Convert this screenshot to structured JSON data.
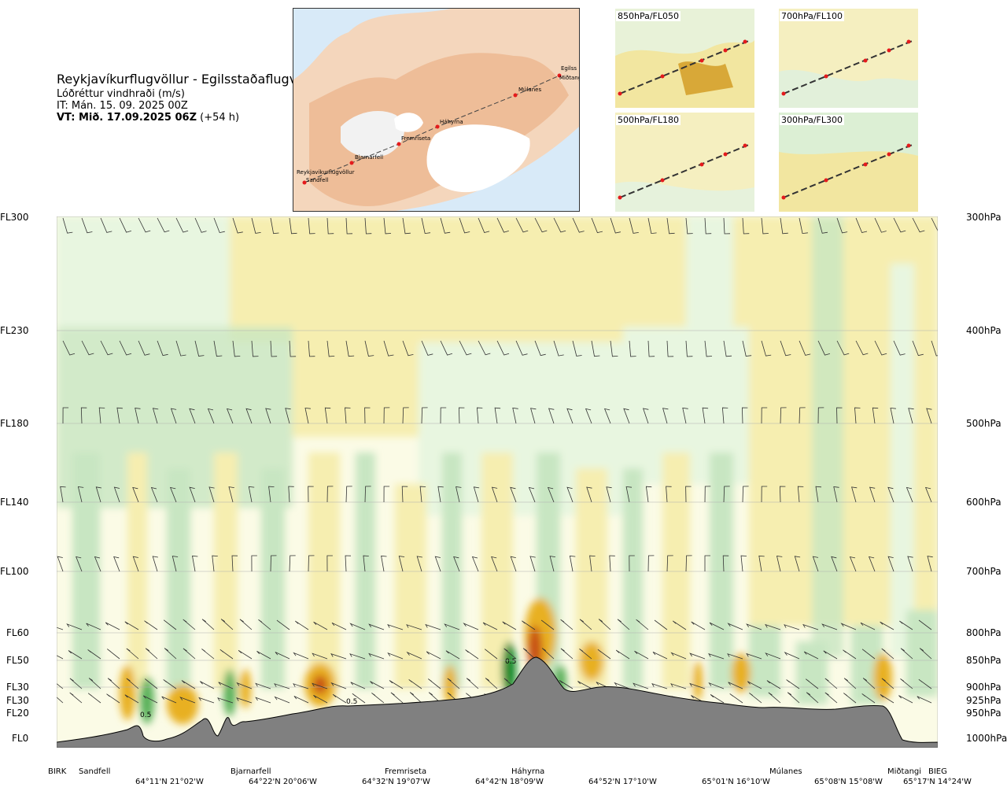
{
  "header": {
    "route_title": "Reykjavíkurflugvöllur - Egilsstaðaflugvöllur",
    "variable": "Lóðréttur vindhraði (m/s)",
    "issue_time": "IT: Mán. 15. 09. 2025 00Z",
    "valid_time": "VT: Mið. 17.09.2025 06Z",
    "lead_time": "(+54 h)"
  },
  "overview_map": {
    "waypoints": [
      "Reykjavíkurflugvöllur",
      "Sandfell",
      "Bjarnarfell",
      "Fremriseta",
      "Háhyrna",
      "Múlanes",
      "Miðtangi",
      "Egilss"
    ]
  },
  "mini_maps": [
    {
      "label": "850hPa/FL050"
    },
    {
      "label": "700hPa/FL100"
    },
    {
      "label": "500hPa/FL180"
    },
    {
      "label": "300hPa/FL300"
    }
  ],
  "levels": [
    {
      "fl": "FL300",
      "hpa": "300hPa"
    },
    {
      "fl": "FL230",
      "hpa": "400hPa"
    },
    {
      "fl": "FL180",
      "hpa": "500hPa"
    },
    {
      "fl": "FL140",
      "hpa": "600hPa"
    },
    {
      "fl": "FL100",
      "hpa": "700hPa"
    },
    {
      "fl": "FL60",
      "hpa": "800hPa"
    },
    {
      "fl": "FL50",
      "hpa": "850hPa"
    },
    {
      "fl": "FL30",
      "hpa": "900hPa"
    },
    {
      "fl": "FL30",
      "hpa": "925hPa"
    },
    {
      "fl": "FL20",
      "hpa": "950hPa"
    },
    {
      "fl": "FL0",
      "hpa": "1000hPa"
    }
  ],
  "station_labels": [
    "BIRK",
    "Sandfell",
    "Bjarnarfell",
    "Fremriseta",
    "Háhyrna",
    "Múlanes",
    "Miðtangi",
    "BIEG"
  ],
  "coord_labels": [
    "64°11'N 21°02'W",
    "64°22'N 20°06'W",
    "64°32'N 19°07'W",
    "64°42'N 18°09'W",
    "64°52'N 17°10'W",
    "65°01'N 16°10'W",
    "65°08'N 15°08'W",
    "65°17'N 14°24'W"
  ],
  "contour_labels": [
    "0.5",
    "0.5",
    "0.5"
  ],
  "colors": {
    "sink_light": "#f6eeb0",
    "sink_mid": "#efd870",
    "sink_strong": "#e8b020",
    "sink_max": "#c85018",
    "lift_light": "#e8f6e0",
    "lift_mid": "#c8e6c2",
    "lift_strong": "#58b058",
    "lift_max": "#108828",
    "terrain": "#808080"
  }
}
